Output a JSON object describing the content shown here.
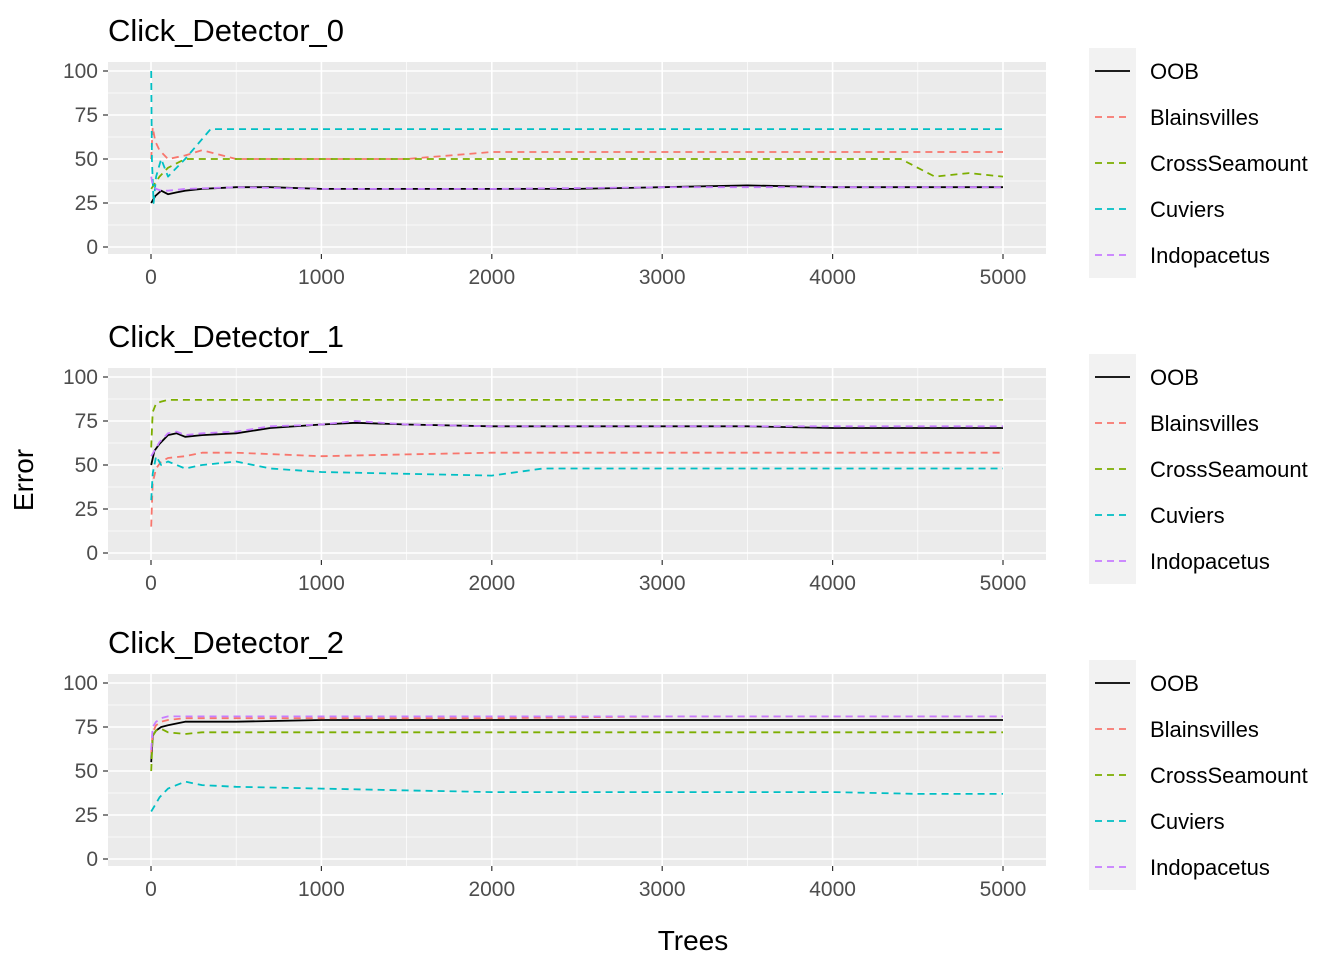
{
  "ylabel": "Error",
  "xlabel": "Trees",
  "chart_data": [
    {
      "type": "line",
      "title": "Click_Detector_0",
      "xlabel": "Trees",
      "ylabel": "Error",
      "xlim": [
        0,
        5000
      ],
      "ylim": [
        0,
        100
      ],
      "x_ticks": [
        0,
        1000,
        2000,
        3000,
        4000,
        5000
      ],
      "y_ticks": [
        0,
        25,
        50,
        75,
        100
      ],
      "grid": true,
      "legend": "right",
      "series": [
        {
          "name": "OOB",
          "color": "#000000",
          "dash": "solid",
          "x": [
            1,
            25,
            60,
            100,
            150,
            200,
            300,
            500,
            700,
            1000,
            1500,
            2000,
            2500,
            3000,
            3500,
            4000,
            4500,
            5000
          ],
          "values": [
            25,
            29,
            32,
            30,
            31,
            32,
            33,
            34,
            34,
            33,
            33,
            33,
            33,
            34,
            35,
            34,
            34,
            34
          ]
        },
        {
          "name": "Blainsvilles",
          "color": "#F8766D",
          "dash": "dashed",
          "x": [
            1,
            10,
            25,
            50,
            100,
            200,
            300,
            500,
            1000,
            1500,
            2000,
            2500,
            3000,
            3500,
            4000,
            4500,
            5000
          ],
          "values": [
            50,
            68,
            60,
            55,
            50,
            52,
            55,
            50,
            50,
            50,
            54,
            54,
            54,
            54,
            54,
            54,
            54
          ]
        },
        {
          "name": "CrossSeamount",
          "color": "#7CAE00",
          "dash": "dashed",
          "x": [
            1,
            50,
            100,
            200,
            400,
            1000,
            1500,
            2000,
            2500,
            3000,
            3500,
            4000,
            4400,
            4600,
            4800,
            5000
          ],
          "values": [
            33,
            40,
            45,
            50,
            50,
            50,
            50,
            50,
            50,
            50,
            50,
            50,
            50,
            40,
            42,
            40
          ]
        },
        {
          "name": "Cuviers",
          "color": "#00BFC4",
          "dash": "dashed",
          "x": [
            1,
            5,
            15,
            30,
            60,
            100,
            200,
            350,
            500,
            1000,
            2000,
            3000,
            4000,
            5000
          ],
          "values": [
            100,
            50,
            25,
            40,
            50,
            40,
            50,
            67,
            67,
            67,
            67,
            67,
            67,
            67
          ]
        },
        {
          "name": "Indopacetus",
          "color": "#C77CFF",
          "dash": "dashed",
          "x": [
            1,
            10,
            30,
            60,
            100,
            200,
            500,
            1000,
            2000,
            3000,
            4000,
            5000
          ],
          "values": [
            40,
            35,
            33,
            32,
            32,
            33,
            34,
            33,
            33,
            34,
            34,
            34
          ]
        }
      ]
    },
    {
      "type": "line",
      "title": "Click_Detector_1",
      "xlabel": "Trees",
      "ylabel": "Error",
      "xlim": [
        0,
        5000
      ],
      "ylim": [
        0,
        100
      ],
      "x_ticks": [
        0,
        1000,
        2000,
        3000,
        4000,
        5000
      ],
      "y_ticks": [
        0,
        25,
        50,
        75,
        100
      ],
      "grid": true,
      "legend": "right",
      "series": [
        {
          "name": "OOB",
          "color": "#000000",
          "dash": "solid",
          "x": [
            1,
            20,
            50,
            100,
            150,
            200,
            300,
            500,
            700,
            1000,
            1200,
            1500,
            2000,
            2500,
            3000,
            3500,
            4000,
            4500,
            5000
          ],
          "values": [
            50,
            58,
            62,
            67,
            68,
            66,
            67,
            68,
            71,
            73,
            74,
            73,
            72,
            72,
            72,
            72,
            71,
            71,
            71
          ]
        },
        {
          "name": "Blainsvilles",
          "color": "#F8766D",
          "dash": "dashed",
          "x": [
            1,
            10,
            30,
            60,
            100,
            200,
            300,
            500,
            1000,
            1500,
            2000,
            2500,
            3000,
            3500,
            4000,
            4500,
            5000
          ],
          "values": [
            15,
            40,
            48,
            52,
            54,
            55,
            57,
            57,
            55,
            56,
            57,
            57,
            57,
            57,
            57,
            57,
            57
          ]
        },
        {
          "name": "CrossSeamount",
          "color": "#7CAE00",
          "dash": "dashed",
          "x": [
            1,
            10,
            30,
            60,
            100,
            200,
            500,
            1000,
            2000,
            3000,
            4000,
            5000
          ],
          "values": [
            60,
            80,
            85,
            86,
            87,
            87,
            87,
            87,
            87,
            87,
            87,
            87
          ]
        },
        {
          "name": "Cuviers",
          "color": "#00BFC4",
          "dash": "dashed",
          "x": [
            1,
            10,
            30,
            60,
            100,
            200,
            300,
            500,
            700,
            1000,
            1500,
            2000,
            2300,
            3000,
            3500,
            4000,
            4500,
            5000
          ],
          "values": [
            30,
            45,
            55,
            50,
            52,
            48,
            50,
            52,
            48,
            46,
            45,
            44,
            48,
            48,
            48,
            48,
            48,
            48
          ]
        },
        {
          "name": "Indopacetus",
          "color": "#C77CFF",
          "dash": "dashed",
          "x": [
            1,
            20,
            50,
            100,
            150,
            200,
            300,
            500,
            700,
            1000,
            1200,
            1500,
            2000,
            2500,
            3000,
            3500,
            4000,
            4500,
            5000
          ],
          "values": [
            55,
            58,
            63,
            68,
            69,
            67,
            68,
            69,
            72,
            73,
            75,
            73,
            72,
            72,
            72,
            72,
            72,
            72,
            72
          ]
        }
      ]
    },
    {
      "type": "line",
      "title": "Click_Detector_2",
      "xlabel": "Trees",
      "ylabel": "Error",
      "xlim": [
        0,
        5000
      ],
      "ylim": [
        0,
        100
      ],
      "x_ticks": [
        0,
        1000,
        2000,
        3000,
        4000,
        5000
      ],
      "y_ticks": [
        0,
        25,
        50,
        75,
        100
      ],
      "grid": true,
      "legend": "right",
      "series": [
        {
          "name": "OOB",
          "color": "#000000",
          "dash": "solid",
          "x": [
            1,
            10,
            30,
            60,
            100,
            200,
            300,
            500,
            1000,
            1500,
            2000,
            3000,
            4000,
            5000
          ],
          "values": [
            55,
            70,
            73,
            75,
            76,
            78,
            78,
            78,
            79,
            79,
            79,
            79,
            79,
            79
          ]
        },
        {
          "name": "Blainsvilles",
          "color": "#F8766D",
          "dash": "dashed",
          "x": [
            1,
            10,
            30,
            60,
            100,
            200,
            500,
            1000,
            2000,
            3000,
            4000,
            5000
          ],
          "values": [
            60,
            72,
            76,
            78,
            79,
            80,
            80,
            80,
            80,
            81,
            81,
            81
          ]
        },
        {
          "name": "CrossSeamount",
          "color": "#7CAE00",
          "dash": "dashed",
          "x": [
            1,
            10,
            30,
            60,
            100,
            200,
            300,
            500,
            1000,
            2000,
            3000,
            4000,
            5000
          ],
          "values": [
            50,
            70,
            73,
            74,
            72,
            71,
            72,
            72,
            72,
            72,
            72,
            72,
            72
          ]
        },
        {
          "name": "Cuviers",
          "color": "#00BFC4",
          "dash": "dashed",
          "x": [
            1,
            20,
            50,
            100,
            150,
            200,
            300,
            500,
            1000,
            1500,
            2000,
            3000,
            4000,
            4500,
            5000
          ],
          "values": [
            27,
            30,
            35,
            40,
            42,
            44,
            42,
            41,
            40,
            39,
            38,
            38,
            38,
            37,
            37
          ]
        },
        {
          "name": "Indopacetus",
          "color": "#C77CFF",
          "dash": "dashed",
          "x": [
            1,
            10,
            30,
            60,
            100,
            200,
            500,
            1000,
            2000,
            3000,
            4000,
            5000
          ],
          "values": [
            62,
            75,
            78,
            80,
            81,
            81,
            81,
            81,
            81,
            81,
            81,
            81
          ]
        }
      ]
    }
  ]
}
